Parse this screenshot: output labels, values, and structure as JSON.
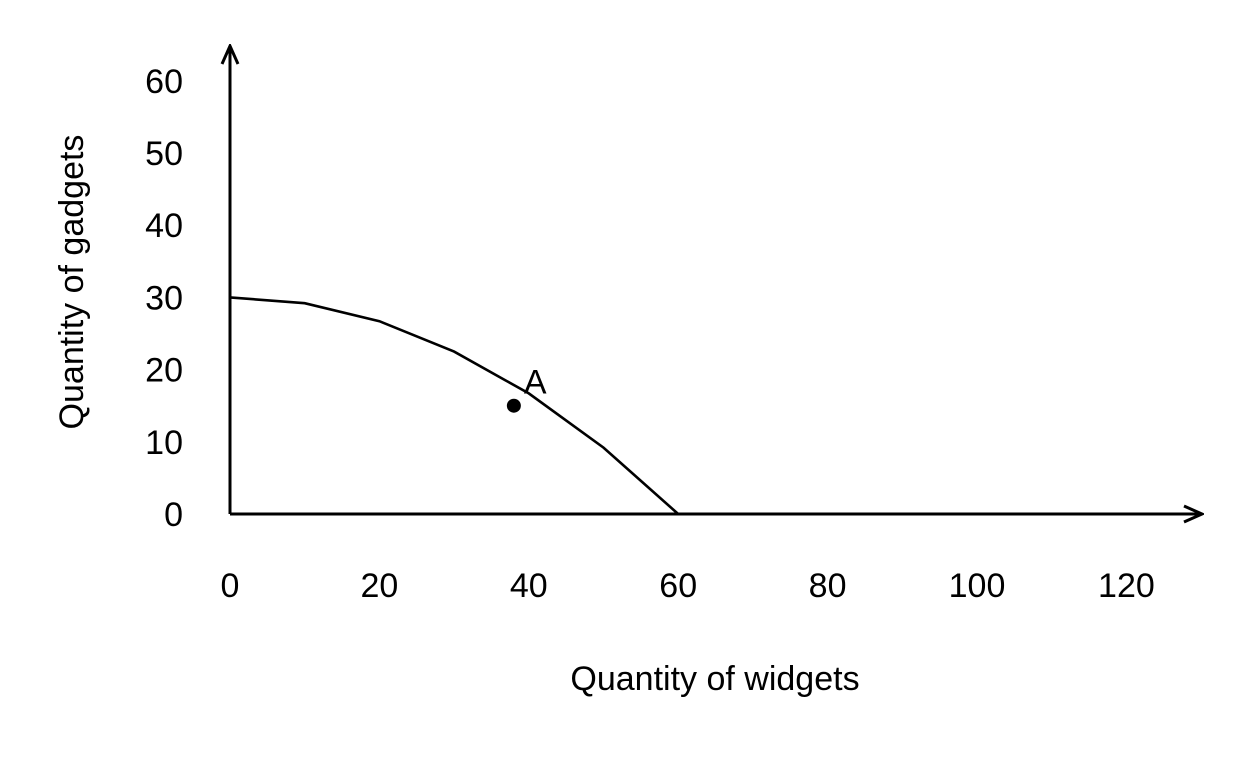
{
  "chart_data": {
    "type": "line",
    "title": "",
    "xlabel": "Quantity of widgets",
    "ylabel": "Quantity of gadgets",
    "xlim": [
      0,
      130
    ],
    "ylim": [
      0,
      65
    ],
    "x_ticks": [
      0,
      20,
      40,
      60,
      80,
      100,
      120
    ],
    "y_ticks": [
      0,
      10,
      20,
      30,
      40,
      50,
      60
    ],
    "grid": false,
    "series": [
      {
        "x": [
          0,
          10,
          20,
          30,
          40,
          50,
          60
        ],
        "y": [
          30,
          29.2,
          26.7,
          22.5,
          16.7,
          9.2,
          0
        ],
        "color": "#000000"
      }
    ],
    "points": [
      {
        "label": "A",
        "x": 38,
        "y": 15
      }
    ]
  }
}
